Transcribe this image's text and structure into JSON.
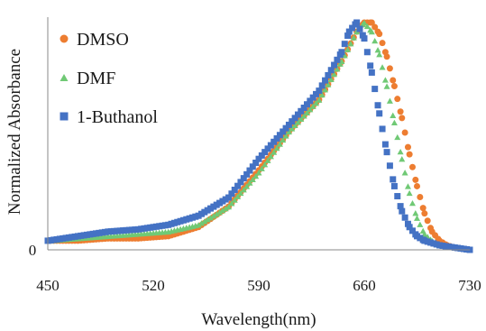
{
  "chart_data": {
    "type": "scatter",
    "title": "",
    "xlabel": "Wavelength(nm)",
    "ylabel": "Normalized Absorbance",
    "xlim": [
      450,
      730
    ],
    "ylim": [
      0,
      1
    ],
    "x_ticks": [
      450,
      520,
      590,
      660,
      730
    ],
    "x_tick_labels": [
      "450",
      "520",
      "590",
      "660",
      "730"
    ],
    "y_ticks": [
      0
    ],
    "y_tick_labels": [
      "0"
    ],
    "grid": false,
    "legend_position": "top-left",
    "series": [
      {
        "name": "DMSO",
        "color": "#ed7d31",
        "marker": "circle",
        "points": [
          [
            450,
            0.04
          ],
          [
            470,
            0.04
          ],
          [
            490,
            0.05
          ],
          [
            510,
            0.05
          ],
          [
            530,
            0.06
          ],
          [
            550,
            0.1
          ],
          [
            570,
            0.19
          ],
          [
            590,
            0.35
          ],
          [
            610,
            0.52
          ],
          [
            630,
            0.66
          ],
          [
            645,
            0.83
          ],
          [
            655,
            0.96
          ],
          [
            660,
            1.0
          ],
          [
            665,
            1.0
          ],
          [
            670,
            0.95
          ],
          [
            675,
            0.85
          ],
          [
            680,
            0.72
          ],
          [
            685,
            0.58
          ],
          [
            690,
            0.42
          ],
          [
            695,
            0.28
          ],
          [
            700,
            0.16
          ],
          [
            705,
            0.08
          ],
          [
            710,
            0.04
          ],
          [
            715,
            0.02
          ],
          [
            720,
            0.01
          ],
          [
            730,
            0.0
          ]
        ]
      },
      {
        "name": "DMF",
        "color": "#70c975",
        "marker": "triangle",
        "points": [
          [
            450,
            0.04
          ],
          [
            470,
            0.05
          ],
          [
            490,
            0.06
          ],
          [
            510,
            0.07
          ],
          [
            530,
            0.08
          ],
          [
            550,
            0.11
          ],
          [
            570,
            0.19
          ],
          [
            590,
            0.34
          ],
          [
            610,
            0.52
          ],
          [
            630,
            0.66
          ],
          [
            645,
            0.83
          ],
          [
            655,
            0.96
          ],
          [
            660,
            1.0
          ],
          [
            665,
            0.96
          ],
          [
            670,
            0.86
          ],
          [
            675,
            0.72
          ],
          [
            680,
            0.56
          ],
          [
            685,
            0.4
          ],
          [
            690,
            0.25
          ],
          [
            695,
            0.14
          ],
          [
            700,
            0.07
          ],
          [
            705,
            0.04
          ],
          [
            710,
            0.02
          ],
          [
            720,
            0.01
          ],
          [
            730,
            0.0
          ]
        ]
      },
      {
        "name": "1-Buthanol",
        "color": "#4472c4",
        "marker": "square",
        "points": [
          [
            450,
            0.04
          ],
          [
            470,
            0.06
          ],
          [
            490,
            0.08
          ],
          [
            510,
            0.09
          ],
          [
            530,
            0.11
          ],
          [
            550,
            0.15
          ],
          [
            570,
            0.23
          ],
          [
            590,
            0.4
          ],
          [
            610,
            0.55
          ],
          [
            630,
            0.7
          ],
          [
            645,
            0.87
          ],
          [
            650,
            0.96
          ],
          [
            655,
            1.0
          ],
          [
            660,
            0.93
          ],
          [
            665,
            0.78
          ],
          [
            670,
            0.6
          ],
          [
            675,
            0.43
          ],
          [
            680,
            0.28
          ],
          [
            685,
            0.17
          ],
          [
            690,
            0.1
          ],
          [
            695,
            0.06
          ],
          [
            700,
            0.04
          ],
          [
            710,
            0.02
          ],
          [
            720,
            0.01
          ],
          [
            730,
            0.0
          ]
        ]
      }
    ]
  }
}
